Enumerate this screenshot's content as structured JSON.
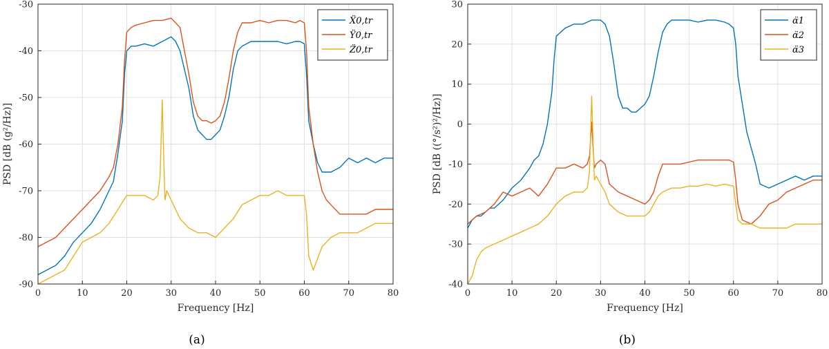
{
  "colors": {
    "blue": "#0072BD",
    "orange": "#D95319",
    "yellow": "#EDB120",
    "grid": "#dfdfdf",
    "axis": "#262626"
  },
  "chart_data": [
    {
      "type": "line",
      "caption": "(a)",
      "xlabel": "Frequency [Hz]",
      "ylabel": "PSD [dB (g²/Hz)]",
      "xlim": [
        0,
        80
      ],
      "ylim": [
        -90,
        -30
      ],
      "xticks": [
        0,
        10,
        20,
        30,
        40,
        50,
        60,
        70,
        80
      ],
      "yticks": [
        -90,
        -80,
        -70,
        -60,
        -50,
        -40,
        -30
      ],
      "grid": true,
      "legend_position": "top-right",
      "series": [
        {
          "name": "Ẍ0,tr",
          "color": "#0072BD",
          "x": [
            0,
            2,
            4,
            6,
            8,
            10,
            12,
            14,
            16,
            17,
            18,
            19,
            19.5,
            20,
            21,
            22,
            24,
            26,
            28,
            30,
            31,
            32,
            33,
            34,
            35,
            36,
            37,
            38,
            39,
            40,
            41,
            42,
            43,
            44,
            45,
            46,
            48,
            50,
            52,
            54,
            56,
            58,
            59,
            60,
            60.5,
            61,
            62,
            63,
            64,
            65,
            66,
            68,
            70,
            72,
            74,
            76,
            78,
            80
          ],
          "y": [
            -88,
            -87,
            -86,
            -84,
            -81,
            -79,
            -77,
            -74,
            -70,
            -68,
            -62,
            -55,
            -45,
            -40,
            -39,
            -39,
            -38.5,
            -39,
            -38,
            -37,
            -38,
            -40,
            -44,
            -48,
            -54,
            -57,
            -58,
            -59,
            -59,
            -58,
            -57,
            -54,
            -50,
            -44,
            -40,
            -39,
            -38,
            -38,
            -38,
            -38,
            -38.5,
            -38,
            -38,
            -38.5,
            -45,
            -55,
            -60,
            -64,
            -66,
            -66,
            -66,
            -65,
            -63,
            -64,
            -63,
            -64,
            -63,
            -63
          ]
        },
        {
          "name": "Ÿ0,tr",
          "color": "#D95319",
          "x": [
            0,
            2,
            4,
            6,
            8,
            10,
            12,
            14,
            16,
            17,
            18,
            19,
            19.5,
            20,
            21,
            22,
            24,
            26,
            28,
            30,
            31,
            32,
            33,
            34,
            35,
            36,
            37,
            38,
            39,
            40,
            41,
            42,
            43,
            44,
            45,
            46,
            48,
            50,
            52,
            54,
            56,
            58,
            59,
            60,
            60.5,
            61,
            62,
            63,
            64,
            65,
            66,
            68,
            70,
            72,
            74,
            76,
            78,
            80
          ],
          "y": [
            -82,
            -81,
            -80,
            -78,
            -76,
            -74,
            -72,
            -70,
            -67,
            -65,
            -60,
            -52,
            -42,
            -36,
            -35,
            -34.5,
            -34,
            -33.5,
            -33.5,
            -33,
            -34,
            -35,
            -40,
            -45,
            -51,
            -54,
            -55,
            -55,
            -55.5,
            -55,
            -54,
            -51,
            -46,
            -40,
            -36,
            -34,
            -34,
            -33.5,
            -34,
            -33.5,
            -33.5,
            -34,
            -33.5,
            -34,
            -40,
            -52,
            -60,
            -66,
            -70,
            -72,
            -73,
            -75,
            -75,
            -75,
            -75,
            -74,
            -74,
            -74
          ]
        },
        {
          "name": "Z̈0,tr",
          "color": "#EDB120",
          "x": [
            0,
            2,
            4,
            6,
            8,
            10,
            12,
            14,
            16,
            18,
            20,
            22,
            24,
            26,
            27,
            27.5,
            28,
            28.3,
            28.6,
            29,
            30,
            32,
            34,
            36,
            38,
            40,
            42,
            44,
            46,
            48,
            50,
            52,
            54,
            56,
            58,
            60,
            60.5,
            61,
            62,
            64,
            66,
            68,
            70,
            72,
            74,
            76,
            78,
            80
          ],
          "y": [
            -90,
            -89,
            -88,
            -87,
            -84,
            -81,
            -80,
            -79,
            -77,
            -74,
            -71,
            -71,
            -71,
            -72,
            -71,
            -67,
            -50.5,
            -62,
            -72,
            -70,
            -72,
            -76,
            -78,
            -79,
            -79,
            -80,
            -78,
            -76,
            -73,
            -72,
            -71,
            -71,
            -70,
            -71,
            -71,
            -71,
            -75,
            -84,
            -87,
            -82,
            -80,
            -79,
            -79,
            -79,
            -78,
            -77,
            -77,
            -77
          ]
        }
      ]
    },
    {
      "type": "line",
      "caption": "(b)",
      "xlabel": "Frequency [Hz]",
      "ylabel": "PSD [dB ((°/s²)²/Hz)]",
      "xlim": [
        0,
        80
      ],
      "ylim": [
        -40,
        30
      ],
      "xticks": [
        0,
        10,
        20,
        30,
        40,
        50,
        60,
        70,
        80
      ],
      "yticks": [
        -40,
        -30,
        -20,
        -10,
        0,
        10,
        20,
        30
      ],
      "grid": true,
      "legend_position": "top-right",
      "series": [
        {
          "name": "α̈1",
          "color": "#0072BD",
          "x": [
            0,
            1,
            2,
            3,
            4,
            5,
            6,
            8,
            10,
            12,
            14,
            15,
            16,
            17,
            18,
            19,
            19.5,
            20,
            21,
            22,
            24,
            26,
            28,
            30,
            31,
            32,
            33,
            34,
            35,
            36,
            37,
            38,
            39,
            40,
            41,
            42,
            43,
            44,
            45,
            46,
            48,
            50,
            52,
            54,
            56,
            58,
            59,
            60,
            60.5,
            61,
            62,
            63,
            64,
            65,
            66,
            68,
            70,
            72,
            74,
            76,
            78,
            80
          ],
          "y": [
            -26,
            -24,
            -23,
            -23,
            -22,
            -21,
            -21,
            -19,
            -16,
            -14,
            -11,
            -9,
            -8,
            -5,
            0,
            8,
            16,
            22,
            23,
            24,
            25,
            25,
            26,
            26,
            25,
            22,
            15,
            7,
            4,
            4,
            3,
            3,
            4,
            5,
            7,
            12,
            18,
            23,
            25,
            26,
            26,
            26,
            25.5,
            26,
            26,
            25.5,
            25,
            24,
            20,
            12,
            5,
            -2,
            -6,
            -10,
            -15,
            -16,
            -15,
            -14,
            -13,
            -14,
            -13,
            -13
          ]
        },
        {
          "name": "α̈2",
          "color": "#D95319",
          "x": [
            0,
            2,
            4,
            6,
            8,
            10,
            12,
            14,
            16,
            18,
            20,
            22,
            24,
            26,
            27,
            27.5,
            28,
            28.3,
            28.6,
            29,
            30,
            31,
            32,
            34,
            36,
            38,
            40,
            41,
            42,
            43,
            44,
            46,
            48,
            50,
            52,
            54,
            56,
            58,
            59,
            60,
            60.5,
            61,
            62,
            64,
            66,
            68,
            70,
            72,
            74,
            76,
            78,
            80
          ],
          "y": [
            -25,
            -23,
            -22,
            -20,
            -17,
            -18,
            -17,
            -16,
            -18,
            -15,
            -11,
            -11,
            -10,
            -11,
            -10,
            -8,
            0.5,
            -6,
            -11,
            -10,
            -9,
            -10,
            -15,
            -17,
            -18,
            -19,
            -20,
            -19,
            -17,
            -13,
            -10,
            -10,
            -10,
            -9.5,
            -9,
            -9,
            -9,
            -9,
            -9,
            -9.5,
            -14,
            -20,
            -24,
            -25,
            -23,
            -20,
            -19,
            -17,
            -16,
            -15,
            -14,
            -14
          ]
        },
        {
          "name": "α̈3",
          "color": "#EDB120",
          "x": [
            0,
            1,
            2,
            3,
            4,
            6,
            8,
            10,
            12,
            14,
            16,
            18,
            20,
            22,
            24,
            26,
            27,
            27.5,
            28,
            28.3,
            28.6,
            29,
            30,
            31,
            32,
            34,
            36,
            38,
            40,
            41,
            42,
            43,
            44,
            46,
            48,
            50,
            52,
            54,
            56,
            58,
            60,
            60.5,
            61,
            62,
            64,
            66,
            68,
            70,
            72,
            74,
            76,
            78,
            80
          ],
          "y": [
            -40,
            -38,
            -34,
            -32,
            -31,
            -30,
            -29,
            -28,
            -27,
            -26,
            -25,
            -23,
            -20,
            -18,
            -17,
            -17,
            -16,
            -12,
            7,
            -4,
            -14,
            -13,
            -15,
            -17,
            -20,
            -22,
            -23,
            -23,
            -23,
            -22,
            -20,
            -18,
            -17,
            -16,
            -16,
            -15.5,
            -15.5,
            -15,
            -15.5,
            -15,
            -15.5,
            -20,
            -24,
            -25,
            -25,
            -26,
            -26,
            -26,
            -26,
            -25,
            -25,
            -25,
            -25
          ]
        }
      ]
    }
  ]
}
